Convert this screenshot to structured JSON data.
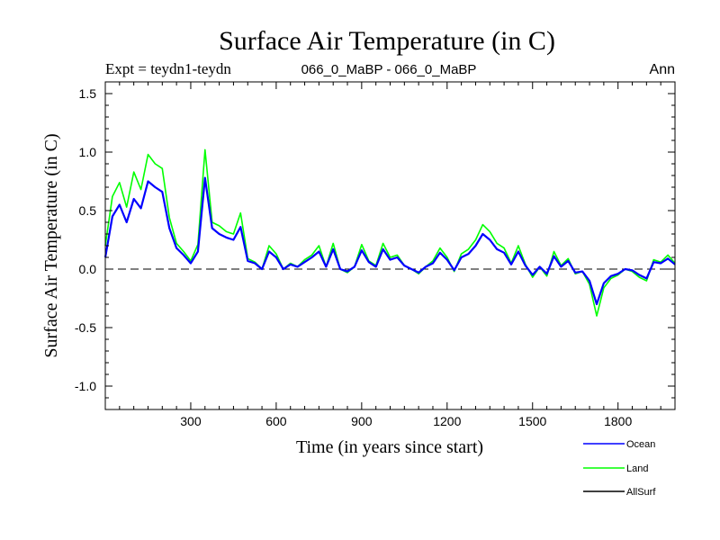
{
  "colors": {
    "ocean": "#0000ff",
    "land": "#00ff00",
    "allsurf": "#000000",
    "axis": "#000000",
    "background": "#ffffff"
  },
  "chart_data": {
    "type": "line",
    "title": "Surface Air Temperature (in C)",
    "subtitle_left": "Expt = teydn1-teydn",
    "subtitle_center": "066_0_MaBP - 066_0_MaBP",
    "subtitle_right": "Ann",
    "xlabel": "Time (in years since start)",
    "ylabel": "Surface Air Temperature (in C)",
    "xlim": [
      0,
      2000
    ],
    "ylim": [
      -1.2,
      1.6
    ],
    "x_ticks": [
      300,
      600,
      900,
      1200,
      1500,
      1800
    ],
    "x_tick_labels": [
      "300",
      "600",
      "900",
      "1200",
      "1500",
      "1800"
    ],
    "y_ticks": [
      -1.0,
      -0.5,
      0.0,
      0.5,
      1.0,
      1.5
    ],
    "y_tick_labels": [
      "-1.0",
      "-0.5",
      "0.0",
      "0.5",
      "1.0",
      "1.5"
    ],
    "reference_line": 0.0,
    "legend_position": "bottom-right, outside plot",
    "series": [
      {
        "name": "Land",
        "color_key": "land",
        "x": [
          0,
          25,
          50,
          75,
          100,
          125,
          150,
          175,
          200,
          225,
          250,
          275,
          300,
          325,
          350,
          375,
          400,
          425,
          450,
          475,
          500,
          525,
          550,
          575,
          600,
          625,
          650,
          675,
          700,
          725,
          750,
          775,
          800,
          825,
          850,
          875,
          900,
          925,
          950,
          975,
          1000,
          1025,
          1050,
          1075,
          1100,
          1125,
          1150,
          1175,
          1200,
          1225,
          1250,
          1275,
          1300,
          1325,
          1350,
          1375,
          1400,
          1425,
          1450,
          1475,
          1500,
          1525,
          1550,
          1575,
          1600,
          1625,
          1650,
          1675,
          1700,
          1725,
          1750,
          1775,
          1800,
          1825,
          1850,
          1875,
          1900,
          1925,
          1950,
          1975,
          2000
        ],
        "values": [
          0.2,
          0.62,
          0.74,
          0.53,
          0.83,
          0.68,
          0.98,
          0.9,
          0.86,
          0.44,
          0.22,
          0.15,
          0.07,
          0.21,
          1.02,
          0.4,
          0.37,
          0.32,
          0.3,
          0.48,
          0.09,
          0.06,
          0.0,
          0.2,
          0.13,
          0.0,
          0.05,
          0.02,
          0.08,
          0.12,
          0.2,
          0.02,
          0.22,
          0.0,
          -0.03,
          0.02,
          0.21,
          0.07,
          0.03,
          0.22,
          0.1,
          0.12,
          0.03,
          0.0,
          -0.04,
          0.02,
          0.07,
          0.18,
          0.1,
          -0.02,
          0.13,
          0.17,
          0.25,
          0.38,
          0.32,
          0.22,
          0.18,
          0.05,
          0.2,
          0.04,
          -0.07,
          0.02,
          -0.06,
          0.15,
          0.03,
          0.09,
          -0.04,
          -0.02,
          -0.13,
          -0.4,
          -0.16,
          -0.08,
          -0.05,
          0.0,
          -0.02,
          -0.07,
          -0.1,
          0.08,
          0.06,
          0.12,
          0.05
        ]
      },
      {
        "name": "Ocean",
        "color_key": "ocean",
        "x": [
          0,
          25,
          50,
          75,
          100,
          125,
          150,
          175,
          200,
          225,
          250,
          275,
          300,
          325,
          350,
          375,
          400,
          425,
          450,
          475,
          500,
          525,
          550,
          575,
          600,
          625,
          650,
          675,
          700,
          725,
          750,
          775,
          800,
          825,
          850,
          875,
          900,
          925,
          950,
          975,
          1000,
          1025,
          1050,
          1075,
          1100,
          1125,
          1150,
          1175,
          1200,
          1225,
          1250,
          1275,
          1300,
          1325,
          1350,
          1375,
          1400,
          1425,
          1450,
          1475,
          1500,
          1525,
          1550,
          1575,
          1600,
          1625,
          1650,
          1675,
          1700,
          1725,
          1750,
          1775,
          1800,
          1825,
          1850,
          1875,
          1900,
          1925,
          1950,
          1975,
          2000
        ],
        "values": [
          0.1,
          0.45,
          0.55,
          0.4,
          0.6,
          0.52,
          0.75,
          0.7,
          0.66,
          0.35,
          0.18,
          0.12,
          0.05,
          0.15,
          0.78,
          0.35,
          0.3,
          0.27,
          0.25,
          0.36,
          0.07,
          0.05,
          0.0,
          0.15,
          0.1,
          0.0,
          0.04,
          0.02,
          0.06,
          0.1,
          0.15,
          0.02,
          0.17,
          0.0,
          -0.02,
          0.02,
          0.16,
          0.06,
          0.02,
          0.17,
          0.08,
          0.1,
          0.03,
          0.0,
          -0.03,
          0.02,
          0.05,
          0.14,
          0.08,
          -0.01,
          0.1,
          0.13,
          0.2,
          0.3,
          0.25,
          0.17,
          0.14,
          0.04,
          0.15,
          0.03,
          -0.05,
          0.02,
          -0.04,
          0.11,
          0.02,
          0.07,
          -0.03,
          -0.02,
          -0.1,
          -0.3,
          -0.12,
          -0.06,
          -0.04,
          0.0,
          -0.01,
          -0.05,
          -0.08,
          0.06,
          0.05,
          0.09,
          0.04
        ]
      },
      {
        "name": "AllSurf",
        "color_key": "allsurf",
        "x": [],
        "values": []
      }
    ]
  }
}
